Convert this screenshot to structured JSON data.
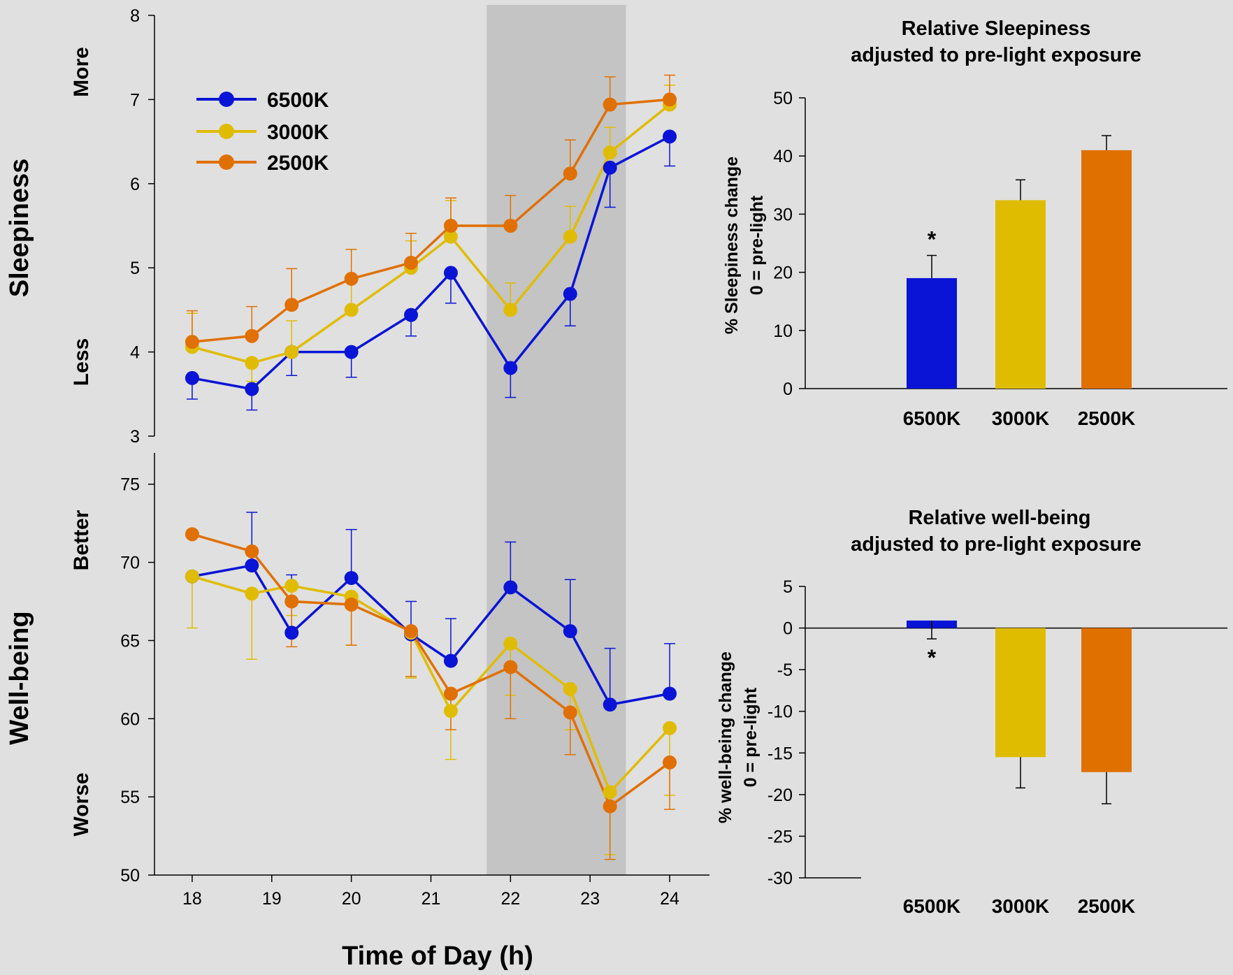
{
  "colors": {
    "6500K": "#0a14d6",
    "3000K": "#e0bc00",
    "2500K": "#e07000",
    "shade": "#c4c4c4",
    "background": "#e0e0e0"
  },
  "legend": [
    "6500K",
    "3000K",
    "2500K"
  ],
  "labels": {
    "sleepiness": "Sleepiness",
    "wellbeing": "Well-being",
    "more": "More",
    "less": "Less",
    "better": "Better",
    "worse": "Worse",
    "xaxis": "Time of Day (h)",
    "sleep_bar_title_1": "Relative Sleepiness",
    "sleep_bar_title_2": "adjusted to pre-light exposure",
    "sleep_bar_ylabel_1": "% Sleepiness change",
    "sleep_bar_ylabel_2": "0 = pre-light",
    "well_bar_title_1": "Relative well-being",
    "well_bar_title_2": "adjusted to pre-light exposure",
    "well_bar_ylabel_1": "% well-being change",
    "well_bar_ylabel_2": "0 = pre-light",
    "sig": "*"
  },
  "chart_data": [
    {
      "type": "line",
      "panel": "sleepiness",
      "xlabel": "Time of Day (h)",
      "ylabel": "Sleepiness",
      "xlim": [
        17.5,
        24.5
      ],
      "ylim": [
        3,
        8
      ],
      "xticks": [
        18,
        19,
        20,
        21,
        22,
        23,
        24
      ],
      "yticks": [
        3,
        4,
        5,
        6,
        7,
        8
      ],
      "shaded_x": [
        21.7,
        23.45
      ],
      "x": [
        18,
        18.75,
        19.25,
        20,
        20.75,
        21.25,
        22,
        22.75,
        23.25,
        24
      ],
      "series": [
        {
          "name": "6500K",
          "values": [
            3.69,
            3.56,
            4.0,
            4.0,
            4.44,
            4.94,
            3.81,
            4.69,
            6.19,
            6.56
          ],
          "errors": [
            0.25,
            0.25,
            0.28,
            0.3,
            0.25,
            0.36,
            0.35,
            0.38,
            0.47,
            0.35
          ],
          "err_dir": [
            -1,
            -1,
            -1,
            -1,
            -1,
            -1,
            -1,
            -1,
            -1,
            -1
          ]
        },
        {
          "name": "3000K",
          "values": [
            4.06,
            3.87,
            4.0,
            4.5,
            5.0,
            5.37,
            4.5,
            5.37,
            6.37,
            6.94
          ],
          "errors": [
            0.4,
            0.22,
            0.37,
            0.4,
            0.32,
            0.43,
            0.32,
            0.36,
            0.3,
            0.23
          ],
          "err_dir": [
            1,
            -1,
            1,
            1,
            1,
            1,
            1,
            1,
            1,
            1
          ]
        },
        {
          "name": "2500K",
          "values": [
            4.12,
            4.19,
            4.56,
            4.87,
            5.06,
            5.5,
            5.5,
            6.12,
            6.94,
            7.0
          ],
          "errors": [
            0.37,
            0.35,
            0.43,
            0.35,
            0.35,
            0.33,
            0.36,
            0.4,
            0.33,
            0.29
          ],
          "err_dir": [
            1,
            1,
            1,
            1,
            1,
            1,
            1,
            1,
            1,
            1
          ]
        }
      ]
    },
    {
      "type": "line",
      "panel": "wellbeing",
      "xlabel": "Time of Day (h)",
      "ylabel": "Well-being",
      "xlim": [
        17.5,
        24.5
      ],
      "ylim": [
        50,
        77
      ],
      "xticks": [
        18,
        19,
        20,
        21,
        22,
        23,
        24
      ],
      "yticks": [
        50,
        55,
        60,
        65,
        70,
        75
      ],
      "shaded_x": [
        21.7,
        23.45
      ],
      "x": [
        18,
        18.75,
        19.25,
        20,
        20.75,
        21.25,
        22,
        22.75,
        23.25,
        24
      ],
      "series": [
        {
          "name": "6500K",
          "values": [
            69.1,
            69.8,
            65.5,
            69.0,
            65.4,
            63.7,
            68.4,
            65.6,
            60.9,
            61.6
          ],
          "errors": [
            0,
            3.4,
            3.7,
            3.1,
            2.1,
            2.7,
            2.9,
            3.3,
            3.6,
            3.2
          ],
          "err_dir": [
            1,
            1,
            1,
            1,
            1,
            1,
            1,
            1,
            1,
            1
          ]
        },
        {
          "name": "3000K",
          "values": [
            69.1,
            68.0,
            68.5,
            67.8,
            65.5,
            60.5,
            64.8,
            61.9,
            55.3,
            59.4
          ],
          "errors": [
            3.3,
            4.2,
            1.9,
            3.1,
            2.9,
            3.1,
            3.3,
            2.6,
            4.0,
            4.3
          ],
          "err_dir": [
            -1,
            -1,
            -1,
            -1,
            -1,
            -1,
            -1,
            -1,
            -1,
            -1
          ]
        },
        {
          "name": "2500K",
          "values": [
            71.8,
            70.7,
            67.5,
            67.3,
            65.6,
            61.6,
            63.3,
            60.4,
            54.4,
            57.2
          ],
          "errors": [
            0,
            0,
            2.9,
            2.6,
            2.9,
            2.3,
            3.3,
            2.7,
            3.4,
            3.0
          ],
          "err_dir": [
            -1,
            -1,
            -1,
            -1,
            -1,
            -1,
            -1,
            -1,
            -1,
            -1
          ]
        }
      ]
    },
    {
      "type": "bar",
      "panel": "relative-sleepiness",
      "title": "Relative Sleepiness adjusted to pre-light exposure",
      "ylabel": "% Sleepiness change 0 = pre-light",
      "categories": [
        "6500K",
        "3000K",
        "2500K"
      ],
      "values": [
        19.0,
        32.4,
        41.0
      ],
      "errors": [
        3.9,
        3.5,
        2.5
      ],
      "significant": [
        true,
        false,
        false
      ],
      "ylim": [
        0,
        50
      ],
      "yticks": [
        0,
        10,
        20,
        30,
        40,
        50
      ]
    },
    {
      "type": "bar",
      "panel": "relative-wellbeing",
      "title": "Relative well-being adjusted to pre-light exposure",
      "ylabel": "% well-being change 0 = pre-light",
      "categories": [
        "6500K",
        "3000K",
        "2500K"
      ],
      "values": [
        0.9,
        -15.5,
        -17.3
      ],
      "errors": [
        2.2,
        3.7,
        3.8
      ],
      "significant": [
        true,
        false,
        false
      ],
      "ylim": [
        -30,
        5
      ],
      "yticks": [
        -30,
        -25,
        -20,
        -15,
        -10,
        -5,
        0,
        5
      ]
    }
  ]
}
